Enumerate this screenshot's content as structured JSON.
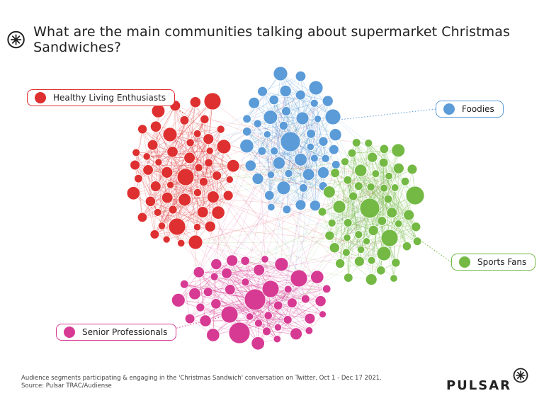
{
  "title": "What are the main communities talking about supermarket Christmas Sandwiches?",
  "communities": [
    {
      "id": "healthy",
      "label": "Healthy Living Enthusiasts",
      "color": "#de3030"
    },
    {
      "id": "foodies",
      "label": "Foodies",
      "color": "#5b9bd8"
    },
    {
      "id": "sports",
      "label": "Sports Fans",
      "color": "#73b944"
    },
    {
      "id": "senior",
      "label": "Senior Professionals",
      "color": "#d63a93"
    }
  ],
  "footer": {
    "line1": "Audience segments participating & engaging in the 'Christmas Sandwich' conversation on Twitter, Oct 1  - Dec 17 2021.",
    "line2": "Source: Pulsar TRAC/Audiense"
  },
  "brand": "PULSAR"
}
